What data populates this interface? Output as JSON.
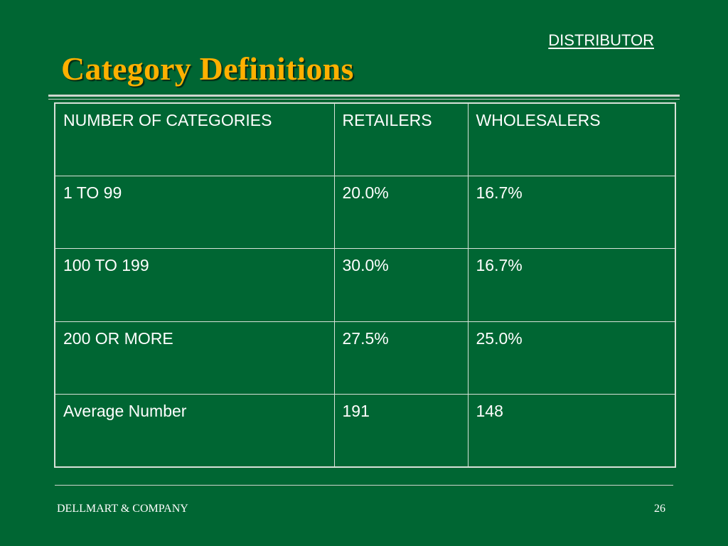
{
  "header": {
    "section_label": "DISTRIBUTOR",
    "title": "Category Definitions"
  },
  "table": {
    "columns": [
      "NUMBER OF CATEGORIES",
      "RETAILERS",
      "WHOLESALERS"
    ],
    "rows": [
      [
        "1 TO 99",
        "20.0%",
        "16.7%"
      ],
      [
        "100 TO 199",
        "30.0%",
        "16.7%"
      ],
      [
        "200 OR MORE",
        "27.5%",
        "25.0%"
      ],
      [
        "Average Number",
        "191",
        "148"
      ]
    ]
  },
  "footer": {
    "company": "DELLMART & COMPANY",
    "page_number": "26"
  },
  "colors": {
    "background": "#006633",
    "title": "#ffb000",
    "text": "#ffffff",
    "rules": "#d9e2d9"
  }
}
